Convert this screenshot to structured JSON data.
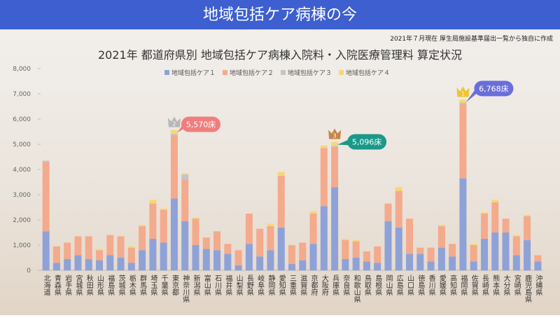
{
  "chart_data": {
    "type": "stacked_bar",
    "banner": "地域包括ケア病棟の今",
    "note": "2021年７月現在 厚生局施設基準届出一覧から独自に作成",
    "title": "2021年 都道府県別 地域包括ケア病棟入院料・入院医療管理料 算定状況",
    "categories": [
      "北海道",
      "青森県",
      "岩手県",
      "宮城県",
      "秋田県",
      "山形県",
      "福島県",
      "茨城県",
      "栃木県",
      "群馬県",
      "埼玉県",
      "千葉県",
      "東京都",
      "神奈川県",
      "新潟県",
      "富山県",
      "石川県",
      "福井県",
      "山梨県",
      "長野県",
      "岐阜県",
      "静岡県",
      "愛知県",
      "三重県",
      "滋賀県",
      "京都府",
      "大阪府",
      "兵庫県",
      "奈良県",
      "和歌山県",
      "鳥取県",
      "島根県",
      "岡山県",
      "広島県",
      "山口県",
      "徳島県",
      "香川県",
      "愛媛県",
      "高知県",
      "福岡県",
      "佐賀県",
      "長崎県",
      "熊本県",
      "大分県",
      "宮崎県",
      "鹿児島県",
      "沖縄県"
    ],
    "series": [
      {
        "name": "地域包括ケア１",
        "color": "#8ea2d8",
        "values": [
          1550,
          300,
          450,
          600,
          450,
          400,
          600,
          500,
          300,
          800,
          1250,
          1100,
          2850,
          1950,
          1000,
          850,
          800,
          650,
          200,
          1050,
          550,
          800,
          1700,
          250,
          400,
          1050,
          2550,
          3300,
          450,
          500,
          350,
          300,
          1950,
          1700,
          650,
          650,
          350,
          900,
          550,
          3650,
          350,
          1250,
          1500,
          1500,
          600,
          1200,
          350
        ]
      },
      {
        "name": "地域包括ケア２",
        "color": "#f4aa8c",
        "values": [
          2750,
          650,
          650,
          750,
          900,
          400,
          800,
          850,
          600,
          950,
          1400,
          1300,
          2500,
          1650,
          1050,
          450,
          750,
          400,
          600,
          1200,
          1100,
          950,
          2050,
          750,
          700,
          1200,
          2300,
          1600,
          750,
          650,
          400,
          650,
          700,
          1450,
          1400,
          250,
          550,
          850,
          500,
          2950,
          650,
          1000,
          1200,
          550,
          750,
          950,
          250
        ]
      },
      {
        "name": "地域包括ケア３",
        "color": "#c4c4c4",
        "values": [
          50,
          0,
          0,
          0,
          0,
          0,
          0,
          0,
          0,
          0,
          0,
          0,
          70,
          200,
          0,
          0,
          0,
          0,
          0,
          0,
          0,
          0,
          0,
          0,
          0,
          0,
          0,
          30,
          0,
          0,
          0,
          0,
          0,
          0,
          0,
          0,
          0,
          0,
          0,
          50,
          0,
          0,
          0,
          0,
          0,
          0,
          0
        ]
      },
      {
        "name": "地域包括ケア４",
        "color": "#f6d873",
        "values": [
          0,
          0,
          0,
          0,
          0,
          50,
          0,
          0,
          50,
          50,
          150,
          50,
          150,
          50,
          50,
          0,
          0,
          0,
          0,
          0,
          0,
          100,
          150,
          0,
          0,
          100,
          100,
          166,
          50,
          50,
          0,
          0,
          0,
          150,
          0,
          0,
          0,
          50,
          0,
          118,
          50,
          50,
          100,
          0,
          50,
          50,
          0
        ]
      }
    ],
    "ylim": [
      0,
      8000
    ],
    "yticks": [
      0,
      {
        "value": 1000,
        "label": "1,000"
      },
      {
        "value": 2000,
        "label": "2,000"
      },
      {
        "value": 3000,
        "label": "3,000"
      },
      {
        "value": 4000,
        "label": "4,000"
      },
      {
        "value": 5000,
        "label": "5,000"
      },
      {
        "value": 6000,
        "label": "6,000"
      },
      {
        "value": 7000,
        "label": "7,000"
      },
      {
        "value": 8000,
        "label": "8,000"
      }
    ],
    "annotations": [
      {
        "text": "5,570床",
        "rank": 2,
        "color": "#f07e7e"
      },
      {
        "text": "5,096床",
        "rank": 3,
        "color": "#1a998a"
      },
      {
        "text": "6,768床",
        "rank": 1,
        "color": "#6a6edb"
      }
    ]
  }
}
